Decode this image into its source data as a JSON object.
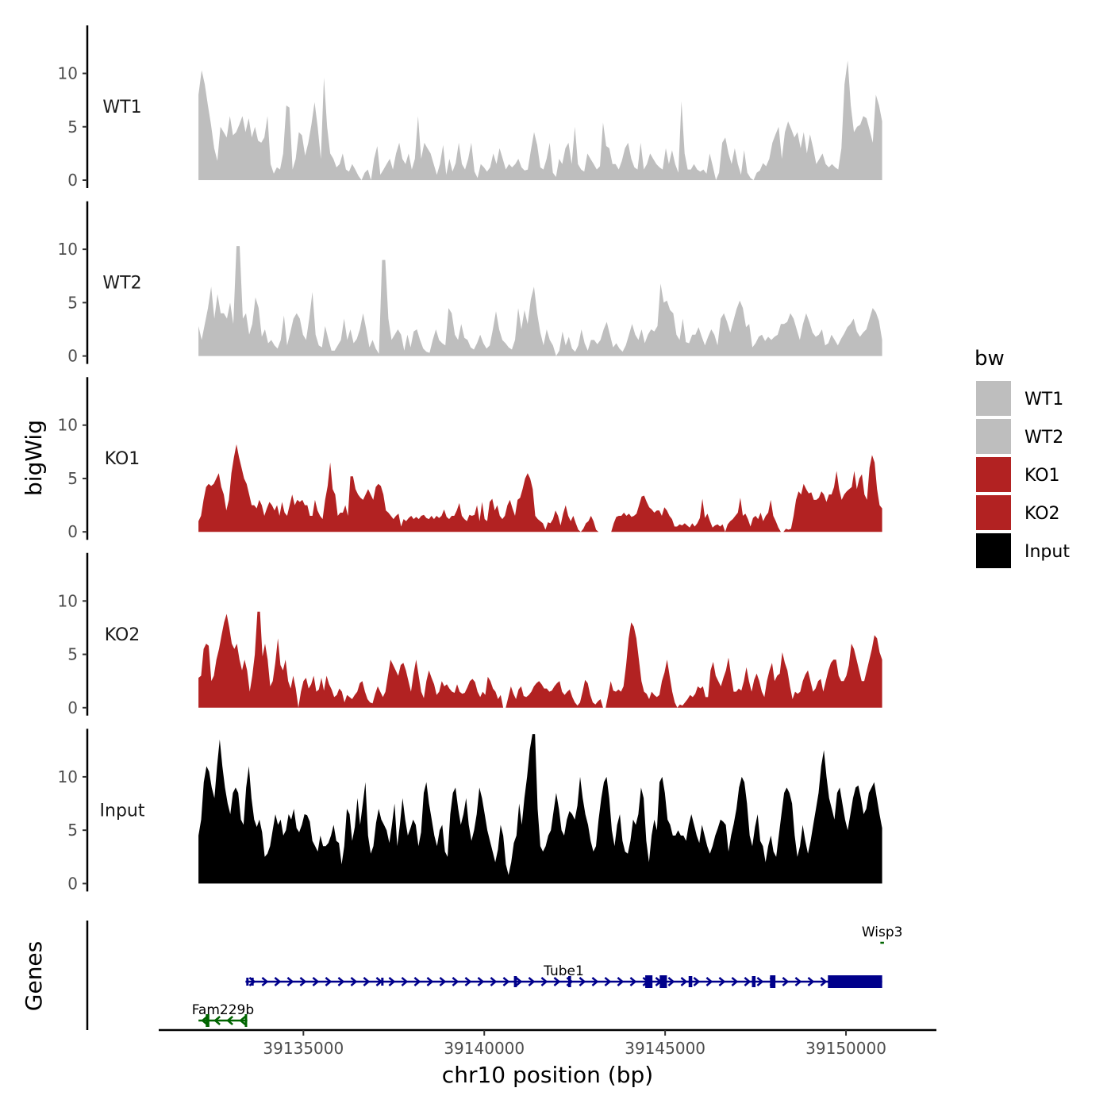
{
  "chart_data": {
    "type": "area",
    "title": "",
    "xlabel": "chr10 position (bp)",
    "ylabel": "bigWig",
    "xlim": [
      39131000,
      39152500
    ],
    "data_range": [
      39132100,
      39151000
    ],
    "ylim": [
      0,
      14.5
    ],
    "yticks": [
      0,
      5,
      10
    ],
    "xticks": [
      39135000,
      39140000,
      39145000,
      39150000
    ],
    "xtick_labels": [
      "39135000",
      "39140000",
      "39145000",
      "39150000"
    ],
    "legend": {
      "title": "bw",
      "position": "right"
    },
    "series": [
      {
        "name": "WT1",
        "color": "#bebebe",
        "values": [
          8,
          10.3,
          9,
          7,
          5.2,
          3,
          1.8,
          5,
          4.5,
          4,
          6,
          4.2,
          4.5,
          5.2,
          6,
          4.5,
          5.8,
          4,
          5,
          3.7,
          3.5,
          4,
          6,
          1.5,
          0.6,
          1.2,
          1,
          2.5,
          7,
          6.8,
          1,
          2,
          4.5,
          4.2,
          2.3,
          3.5,
          5.2,
          7.3,
          5,
          2,
          9.6,
          5,
          2.5,
          2,
          1.2,
          1.5,
          2.5,
          1,
          0.8,
          1.5,
          1,
          0.4,
          0,
          0.7,
          1,
          0,
          2,
          3.2,
          0.5,
          1,
          1.5,
          2,
          1,
          2.5,
          3.5,
          2,
          1.5,
          2.5,
          1,
          2,
          6,
          2,
          3.5,
          3,
          2.5,
          1.5,
          0.5,
          1.5,
          3.3,
          0.5,
          2,
          0.8,
          1.6,
          3.5,
          1.5,
          1,
          2,
          3.5,
          0.8,
          0.2,
          1.5,
          1.2,
          0.8,
          1.2,
          2.5,
          1.5,
          3,
          2,
          1,
          1.5,
          1.2,
          1.5,
          2,
          1.2,
          0.9,
          1,
          2.8,
          4.5,
          3.3,
          1.2,
          1,
          2,
          3.5,
          0.7,
          0.3,
          2,
          1.5,
          3,
          3.5,
          1.5,
          5,
          1.5,
          1,
          0.8,
          2.5,
          2,
          1.5,
          1,
          1.3,
          5.4,
          3.2,
          3,
          1.5,
          1.5,
          1,
          1.8,
          3,
          3.5,
          2,
          1.2,
          1,
          3.5,
          1,
          1.5,
          2.5,
          2,
          1.5,
          1.2,
          1,
          3,
          1.5,
          2.8,
          1.5,
          0.7,
          7.4,
          2.5,
          1,
          1,
          1.5,
          1,
          0.8,
          1,
          0.6,
          2.5,
          1.3,
          0,
          0.7,
          3.5,
          4,
          2.5,
          1.5,
          3,
          1.5,
          0.5,
          2.8,
          0.7,
          0.2,
          0,
          0.7,
          0.9,
          1.6,
          1.3,
          2,
          3.5,
          4.3,
          5,
          2,
          4.5,
          5.5,
          4.8,
          4,
          4.5,
          3,
          4.5,
          2.5,
          4.3,
          3,
          1.5,
          2,
          2.5,
          1.5,
          1.2,
          1.5,
          1.2,
          1,
          3,
          9,
          11.2,
          7,
          4.5,
          5,
          5.2,
          6,
          5.8,
          4.7,
          3.5,
          8,
          7,
          5.5
        ]
      },
      {
        "name": "WT2",
        "color": "#bebebe",
        "values": [
          2.8,
          1.5,
          3,
          4.5,
          6.5,
          3.5,
          5.8,
          4,
          4,
          3.5,
          5,
          3,
          10.3,
          10.3,
          3.5,
          4,
          2,
          3,
          5.5,
          4.5,
          1.8,
          2.5,
          1.2,
          1.5,
          1,
          0.7,
          1.5,
          3.8,
          1,
          2.2,
          3.5,
          4,
          3.5,
          2,
          1.5,
          3.5,
          6,
          2,
          1,
          0.8,
          2.8,
          1.6,
          0.5,
          0.5,
          1,
          1.5,
          3.5,
          1.5,
          2.5,
          1.2,
          1.6,
          2.5,
          4,
          2.5,
          0.8,
          1.5,
          0.7,
          0.2,
          9,
          9,
          3.5,
          1.5,
          2,
          2.5,
          2,
          0.5,
          2,
          0.8,
          2.3,
          2.5,
          1.5,
          0.7,
          0.4,
          0.3,
          1.5,
          2.5,
          1.5,
          1.2,
          1,
          4.5,
          4,
          2,
          1.5,
          3,
          1.7,
          1.5,
          0.8,
          0.6,
          1.2,
          2,
          1.2,
          0.7,
          1,
          2.5,
          4.2,
          2.5,
          1.5,
          1.2,
          0.8,
          0.6,
          1.5,
          4.5,
          2.5,
          4.3,
          3,
          5.3,
          6.5,
          4,
          2.2,
          1,
          2.5,
          1.5,
          1,
          0,
          0.5,
          2.3,
          1,
          1.8,
          0.7,
          0.4,
          1,
          2.5,
          1.2,
          0.5,
          1.5,
          1.5,
          1.1,
          1.5,
          2.5,
          3.2,
          2,
          0.8,
          1.2,
          0.7,
          0.4,
          1,
          2,
          3,
          2,
          1.5,
          2.5,
          1.2,
          2,
          2.5,
          2.3,
          2.8,
          6.8,
          5,
          5.2,
          4.3,
          4,
          2,
          1.5,
          3.5,
          1.3,
          1.2,
          2,
          2,
          2.7,
          1.8,
          1,
          1.8,
          2.5,
          2,
          1,
          3.5,
          4,
          3.2,
          2.2,
          3.3,
          4.4,
          5.2,
          4.5,
          2.7,
          3,
          0.8,
          1.2,
          1.8,
          2,
          1.4,
          1.8,
          1.5,
          1.8,
          2,
          3,
          3,
          3.2,
          4,
          3.5,
          2.5,
          1.5,
          3,
          4,
          3.2,
          2.2,
          1.8,
          2,
          2.5,
          1,
          1.2,
          2,
          1.5,
          1,
          1.6,
          2.1,
          2.7,
          3,
          3.5,
          2.3,
          1.8,
          2.2,
          2.5,
          3.5,
          4.5,
          4.1,
          3.3,
          1.5
        ]
      },
      {
        "name": "KO1",
        "color": "#b22222",
        "values": [
          1,
          1.5,
          3,
          4.2,
          4.5,
          4.3,
          4.5,
          5,
          5.5,
          4.2,
          3.5,
          2,
          3,
          5.5,
          7,
          8.2,
          7,
          6,
          5,
          4.5,
          3.5,
          2.5,
          2.5,
          2.2,
          3,
          2.5,
          1.5,
          2.2,
          2.8,
          2.5,
          2,
          2.5,
          1.5,
          2.8,
          1.8,
          1.5,
          2.5,
          3.5,
          2.5,
          3,
          2.8,
          3,
          2.5,
          2.5,
          1.5,
          1.5,
          3,
          2,
          1.5,
          1.2,
          3,
          4.3,
          6.5,
          4,
          3.5,
          1.5,
          1.8,
          1.8,
          2.5,
          1.5,
          5.2,
          5.2,
          4,
          3.5,
          3.2,
          3,
          3.5,
          4,
          3.5,
          3,
          4.2,
          4.5,
          4.3,
          3.5,
          2,
          1.8,
          1.5,
          1.2,
          1.5,
          1.7,
          0.5,
          1.2,
          1,
          1.3,
          1.5,
          1.2,
          1.4,
          1.2,
          1.5,
          1.6,
          1.3,
          1.2,
          1.5,
          1.2,
          1.5,
          1.3,
          1.5,
          2.1,
          1.4,
          1.2,
          1.5,
          1.5,
          2,
          2.7,
          1.5,
          1.2,
          1,
          1.6,
          1.5,
          1.6,
          2.5,
          1,
          2.8,
          1.2,
          1,
          2.8,
          3.1,
          2,
          2.5,
          1.5,
          1.2,
          1.5,
          2.5,
          3,
          2.2,
          1.5,
          3,
          3.2,
          4,
          5,
          5.5,
          5,
          4,
          1.5,
          1.2,
          1,
          0.8,
          0.2,
          0.9,
          0.8,
          1.2,
          2,
          1.5,
          0.6,
          1.7,
          2.5,
          1.5,
          1,
          1.5,
          0.8,
          0.2,
          0,
          0.3,
          0.8,
          1,
          1.5,
          1,
          0.2,
          0,
          0,
          0,
          0,
          0,
          0,
          0.8,
          1.4,
          1.5,
          1.5,
          1.8,
          1.5,
          1.7,
          1.4,
          1.5,
          1.7,
          2.5,
          3.3,
          3.4,
          2.8,
          2.3,
          2.1,
          1.8,
          2,
          2,
          1.5,
          2.3,
          2,
          1.5,
          1.2,
          0.5,
          0.5,
          0.7,
          0.6,
          0.8,
          0.6,
          0.4,
          0.8,
          0.5,
          0.8,
          1.3,
          3.1,
          1.3,
          1.7,
          1,
          0.4,
          0.6,
          0.7,
          0.5,
          0.7,
          0,
          0.7,
          1,
          1.2,
          1.5,
          1.8,
          3.2,
          1.5,
          1.7,
          1.2,
          0.5,
          1.3,
          1.5,
          1.2,
          1.8,
          1,
          1.5,
          1.8,
          3,
          1.5,
          1,
          0.4,
          0,
          0,
          0.3,
          0.2,
          0.3,
          1.5,
          3,
          3.8,
          3.5,
          4.5,
          4,
          3.6,
          3.7,
          3,
          3,
          3.2,
          3.8,
          3.5,
          2.8,
          3.5,
          3.5,
          4.2,
          5.7,
          4,
          3,
          3.5,
          3.8,
          4,
          4.2,
          5.7,
          4,
          5,
          5.4,
          3.5,
          3,
          6,
          7.2,
          6.5,
          4,
          2.5,
          2.2
        ]
      },
      {
        "name": "KO2",
        "color": "#b22222",
        "values": [
          2.8,
          3,
          5.5,
          6,
          5.8,
          2.5,
          3,
          4.5,
          5.5,
          6.8,
          8,
          8.8,
          7.5,
          6,
          5.5,
          6,
          4.5,
          3.5,
          4.5,
          3.5,
          1.5,
          3,
          5,
          9,
          9,
          4.8,
          6,
          4.5,
          2,
          2.5,
          4.2,
          6.5,
          4,
          3.5,
          4.5,
          2.5,
          1.8,
          3,
          1.8,
          0,
          1.5,
          2.5,
          2.8,
          1.8,
          2.2,
          3,
          1.5,
          1.7,
          2.8,
          1.6,
          3,
          2.2,
          1.7,
          1,
          1.2,
          1.8,
          1.5,
          0.5,
          1.2,
          1,
          0.8,
          1.2,
          1.5,
          2.3,
          2.5,
          1.5,
          0.8,
          0.5,
          0.4,
          1.3,
          2,
          1.5,
          1,
          1.5,
          3,
          4.5,
          4,
          3.5,
          3,
          4,
          4.2,
          3.5,
          2.5,
          1.5,
          3.2,
          4.5,
          3,
          1.5,
          0.9,
          2.5,
          3.5,
          2.8,
          2.2,
          1.2,
          1.5,
          2.5,
          2,
          2.2,
          1.8,
          1.5,
          1.4,
          2.2,
          1.5,
          1.3,
          1.4,
          1.9,
          2.5,
          2.7,
          2.4,
          1.5,
          1,
          1.5,
          1.2,
          2.9,
          2.5,
          1.8,
          1.5,
          0.8,
          1.2,
          0,
          0,
          1,
          2,
          1.3,
          0.8,
          1.7,
          2,
          1.1,
          1,
          1.2,
          1.5,
          2,
          2.3,
          2.5,
          2.2,
          1.8,
          1.8,
          1.5,
          1.6,
          2,
          2.3,
          2.5,
          1.5,
          1.2,
          1.5,
          1.7,
          1,
          0.5,
          0.2,
          0.5,
          1.5,
          2.6,
          2.3,
          1.2,
          0.5,
          0.3,
          0.6,
          0.8,
          0,
          0,
          1.2,
          2.5,
          1.6,
          1.5,
          1.7,
          1.5,
          2,
          4,
          6.5,
          8,
          7.6,
          6.5,
          4.5,
          2.5,
          1.5,
          1.3,
          0.8,
          1.5,
          1.2,
          1,
          1.2,
          2.5,
          3.3,
          4.5,
          3,
          1.5,
          0.5,
          0,
          0.3,
          0.2,
          0.5,
          0.8,
          1.2,
          1,
          1.3,
          2,
          1.8,
          2,
          1,
          1,
          3.5,
          4.3,
          3,
          2.5,
          2,
          2.8,
          3.5,
          4.7,
          3,
          1.5,
          1.5,
          1.8,
          1.6,
          2.5,
          3.8,
          2.5,
          1.5,
          2.6,
          3.2,
          2.5,
          1.5,
          1,
          2.5,
          3.5,
          4.2,
          2.5,
          3,
          3.2,
          5.2,
          4.2,
          3.5,
          2,
          0.8,
          1.5,
          1.3,
          1.5,
          2.5,
          3.1,
          3.5,
          2.5,
          1.5,
          1.8,
          2.5,
          2.7,
          1.5,
          2.5,
          3.5,
          4.2,
          4.5,
          4.5,
          3,
          2.5,
          2.5,
          3,
          4,
          6,
          5.5,
          4.5,
          3.5,
          2.5,
          2.5,
          3.5,
          4.5,
          5.5,
          6.8,
          6.5,
          5.2,
          4.5
        ]
      },
      {
        "name": "Input",
        "color": "#000000",
        "values": [
          4.5,
          6,
          9.5,
          11,
          10.5,
          9,
          8,
          11,
          13.5,
          11,
          9,
          7.5,
          6.5,
          8.5,
          9,
          8.5,
          6,
          5.5,
          9,
          11,
          8,
          6,
          5.3,
          6,
          4.8,
          2.5,
          2.8,
          3.5,
          5,
          6.5,
          5.5,
          6,
          4.5,
          5,
          6.5,
          6,
          7,
          5.2,
          4.8,
          5.5,
          6.5,
          6.4,
          5.8,
          4,
          3.5,
          3,
          4.5,
          3.5,
          3.5,
          3.8,
          4.5,
          5.5,
          4,
          3.8,
          1.8,
          3.5,
          7,
          6.5,
          4,
          5.3,
          8,
          5.5,
          7.5,
          9.5,
          4.5,
          2.8,
          3.5,
          5.7,
          7,
          6,
          5.5,
          5,
          3.8,
          5.5,
          7.5,
          3.5,
          5.5,
          8,
          6,
          4.5,
          5.2,
          6,
          5.5,
          3.5,
          4.8,
          8.5,
          9.5,
          7.5,
          6,
          4.5,
          3.5,
          5,
          5.5,
          3,
          2.5,
          6.5,
          8.5,
          9,
          7,
          5.5,
          6.5,
          8,
          5.5,
          4,
          5,
          6.5,
          9,
          8,
          6.5,
          5,
          4,
          3,
          2,
          3.2,
          5.5,
          4.5,
          1.8,
          0.8,
          2,
          3.8,
          4.5,
          7.5,
          5.5,
          8,
          10,
          12.5,
          14,
          14,
          7,
          3.5,
          3,
          3.5,
          4.5,
          5,
          6.8,
          8.5,
          7,
          5,
          4.5,
          6,
          6.8,
          6.5,
          6,
          7.3,
          10,
          8,
          6.5,
          5.5,
          4,
          3,
          3.5,
          6,
          8,
          9.5,
          10,
          8,
          5,
          3.5,
          5.5,
          6.5,
          4,
          3,
          2.8,
          4,
          6,
          5.5,
          6.5,
          9,
          8,
          4,
          2,
          4.5,
          6,
          5,
          9.5,
          10,
          8.5,
          6,
          5.5,
          4.5,
          4.5,
          5,
          4.5,
          4.5,
          4,
          5.5,
          6.5,
          5.5,
          4.5,
          3.8,
          5.5,
          4.5,
          3.5,
          2.8,
          3.5,
          4.5,
          5.2,
          6,
          5.8,
          5.5,
          3,
          4.5,
          5.6,
          7,
          9,
          10,
          9.5,
          7.5,
          4.5,
          3.5,
          5.3,
          6.5,
          4,
          3.5,
          2,
          3.5,
          4.5,
          3,
          2.5,
          4.5,
          6.5,
          8.5,
          9,
          8.5,
          7.5,
          4.5,
          2.5,
          3.5,
          5.5,
          4,
          2.8,
          4,
          5.5,
          7,
          8.5,
          11,
          12.5,
          10,
          8,
          7,
          6,
          8.5,
          9,
          7.5,
          6,
          5,
          6.5,
          8,
          9,
          9.2,
          8,
          6.5,
          7,
          8.5,
          9,
          9.5,
          8,
          6.5,
          5.2
        ]
      }
    ]
  },
  "genes": [
    {
      "name": "Wisp3",
      "start": 39150950,
      "end": 39151050,
      "strand": "-",
      "color": "#006400",
      "row": 0
    },
    {
      "name": "Tube1",
      "start": 39133400,
      "end": 39151000,
      "strand": "+",
      "color": "#00008b",
      "row": 1
    },
    {
      "name": "Fam229b",
      "start": 39132100,
      "end": 39133450,
      "strand": "-",
      "color": "#006400",
      "row": 2
    }
  ],
  "genes_track_label": "Genes"
}
